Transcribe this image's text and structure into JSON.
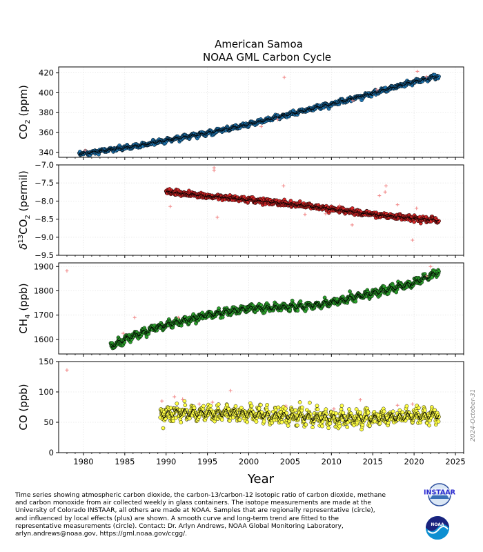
{
  "title": {
    "line1": "American Samoa",
    "line2": "NOAA GML Carbon Cycle"
  },
  "date_stamp": "2024-October-31",
  "caption_lines": [
    "Time series showing atmospheric carbon dioxide, the carbon-13/carbon-12 isotopic ratio of carbon dioxide, methane",
    "and carbon monoxide from air collected weekly in glass containers.  The isotope measurements are made at the",
    "University of Colorado INSTAAR, all others are made at NOAA.  Samples that are regionally representative (circle),",
    "and influenced by local effects (plus) are shown. A smooth curve and long-term trend are fitted to the",
    "representative measurements (circle).  Contact:  Dr. Arlyn Andrews, NOAA Global Monitoring Laboratory,",
    "arlyn.andrews@noaa.gov, https://gml.noaa.gov/ccgg/."
  ],
  "logos": {
    "instaar": "INSTAAR",
    "noaa": "NOAA"
  },
  "chart_data": {
    "type": "scatter",
    "xlabel": "Year",
    "xlim": [
      1977,
      2026
    ],
    "xticks": [
      1980,
      1985,
      1990,
      1995,
      2000,
      2005,
      2010,
      2015,
      2020,
      2025
    ],
    "panels": [
      {
        "name": "co2",
        "ylabel": "CO2 (ppm)",
        "ylabel_main": "CO",
        "ylabel_sub": "2",
        "ylabel_unit": " (ppm)",
        "ylim": [
          335,
          426
        ],
        "yticks": [
          340,
          360,
          380,
          400,
          420
        ],
        "point_color": "#1f77b4",
        "line_color": "#000000",
        "trend": [
          [
            1979.5,
            338.5
          ],
          [
            1985,
            344.5
          ],
          [
            1990,
            352
          ],
          [
            1995,
            359.5
          ],
          [
            2000,
            368
          ],
          [
            2005,
            378.5
          ],
          [
            2010,
            388.5
          ],
          [
            2015,
            399.5
          ],
          [
            2020,
            411
          ],
          [
            2023,
            417
          ]
        ],
        "seasonal_amplitude": 1.0,
        "scatter_sd": 0.9,
        "start": 1979.5,
        "end": 2023,
        "outliers": [
          [
            2004.3,
            415.5
          ],
          [
            2020.4,
            421.5
          ],
          [
            2015.5,
            403
          ],
          [
            1980.2,
            342
          ],
          [
            2003.5,
            373
          ],
          [
            2012.6,
            392
          ],
          [
            2021.5,
            416
          ],
          [
            2001.5,
            366
          ]
        ]
      },
      {
        "name": "d13c",
        "ylabel": "δ13CO2 (permil)",
        "ylabel_main": "CO",
        "ylabel_prefix": "δ",
        "ylabel_presup": "13",
        "ylabel_sub": "2",
        "ylabel_unit": " (permil)",
        "ylim": [
          -9.5,
          -7.0
        ],
        "yticks": [
          -9.5,
          -9.0,
          -8.5,
          -8.0,
          -7.5,
          -7.0
        ],
        "ytick_labels": [
          "−9.5",
          "−9.0",
          "−8.5",
          "−8.0",
          "−7.5",
          "−7.0"
        ],
        "point_color": "#d62728",
        "line_color": "#000000",
        "trend": [
          [
            1990,
            -7.74
          ],
          [
            1995,
            -7.86
          ],
          [
            2000,
            -7.97
          ],
          [
            2005,
            -8.08
          ],
          [
            2010,
            -8.22
          ],
          [
            2015,
            -8.37
          ],
          [
            2020,
            -8.48
          ],
          [
            2023,
            -8.53
          ]
        ],
        "seasonal_amplitude": 0.02,
        "scatter_sd": 0.035,
        "start": 1990,
        "end": 2023,
        "outliers": [
          [
            1995.8,
            -7.08
          ],
          [
            1995.8,
            -7.15
          ],
          [
            2004.2,
            -7.58
          ],
          [
            2016.6,
            -7.58
          ],
          [
            2019.8,
            -9.08
          ],
          [
            2009.3,
            -8.35
          ],
          [
            2012.5,
            -8.66
          ],
          [
            2020.3,
            -8.2
          ],
          [
            1990.5,
            -8.15
          ],
          [
            1996.2,
            -8.45
          ],
          [
            2006.8,
            -8.37
          ],
          [
            2011,
            -8.12
          ],
          [
            2015.8,
            -7.85
          ],
          [
            2016.5,
            -7.75
          ],
          [
            2018,
            -8.1
          ]
        ]
      },
      {
        "name": "ch4",
        "ylabel": "CH4 (ppb)",
        "ylabel_main": "CH",
        "ylabel_sub": "4",
        "ylabel_unit": " (ppb)",
        "ylim": [
          1540,
          1915
        ],
        "yticks": [
          1600,
          1700,
          1800,
          1900
        ],
        "point_color": "#2ca02c",
        "line_color": "#000000",
        "trend": [
          [
            1983.3,
            1572
          ],
          [
            1986,
            1615
          ],
          [
            1990,
            1660
          ],
          [
            1995,
            1700
          ],
          [
            2000,
            1728
          ],
          [
            2005,
            1734
          ],
          [
            2007,
            1738
          ],
          [
            2010,
            1752
          ],
          [
            2015,
            1790
          ],
          [
            2020,
            1832
          ],
          [
            2023,
            1878
          ]
        ],
        "seasonal_amplitude": 9.0,
        "scatter_sd": 6.0,
        "start": 1983.3,
        "end": 2023,
        "outliers": [
          [
            1978.0,
            1882
          ],
          [
            1986.2,
            1690
          ],
          [
            1984.8,
            1625
          ],
          [
            1991.5,
            1690
          ],
          [
            2022.0,
            1900
          ],
          [
            2021.5,
            1860
          ]
        ]
      },
      {
        "name": "co",
        "ylabel": "CO (ppb)",
        "ylabel_main": "CO",
        "ylabel_sub": "",
        "ylabel_unit": " (ppb)",
        "ylim": [
          0,
          150
        ],
        "yticks": [
          0,
          50,
          100,
          150
        ],
        "point_color": "#ffff44",
        "line_color": "#000000",
        "trend": [
          [
            1989.3,
            62
          ],
          [
            1992,
            66
          ],
          [
            1995,
            64
          ],
          [
            1998,
            66
          ],
          [
            2000,
            63
          ],
          [
            2005,
            60
          ],
          [
            2010,
            57
          ],
          [
            2015,
            56
          ],
          [
            2020,
            60
          ],
          [
            2023,
            62
          ]
        ],
        "seasonal_amplitude": 6.0,
        "scatter_sd": 5.5,
        "start": 1989.3,
        "end": 2023,
        "outliers": [
          [
            1978.0,
            136
          ],
          [
            1989.5,
            85
          ],
          [
            1991.0,
            92
          ],
          [
            1992,
            88
          ],
          [
            1997.8,
            102
          ],
          [
            1995.6,
            83
          ],
          [
            2013.5,
            87
          ],
          [
            2010.3,
            72
          ],
          [
            2018,
            78
          ],
          [
            2019.8,
            80
          ],
          [
            2004.5,
            77
          ],
          [
            1994,
            80
          ]
        ]
      }
    ]
  }
}
